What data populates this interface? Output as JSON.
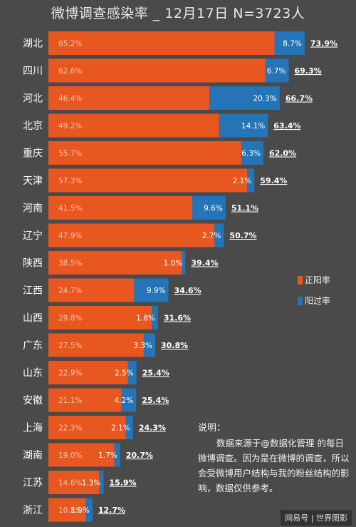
{
  "chart_data": {
    "type": "bar",
    "orientation": "horizontal",
    "stacked": true,
    "title": "微博调查感染率 _ 12月17日 N=3723人",
    "categories": [
      "湖北",
      "四川",
      "河北",
      "北京",
      "重庆",
      "天津",
      "河南",
      "辽宁",
      "陕西",
      "江西",
      "山西",
      "广东",
      "山东",
      "安徽",
      "上海",
      "湖南",
      "江苏",
      "浙江"
    ],
    "series": [
      {
        "name": "正阳率",
        "color": "#e8571f",
        "values": [
          65.2,
          62.6,
          46.4,
          49.2,
          55.7,
          57.3,
          41.5,
          47.9,
          38.5,
          24.7,
          29.8,
          27.5,
          22.9,
          21.1,
          22.3,
          19.0,
          14.6,
          10.8
        ],
        "labels": [
          "65.2%",
          "62.6%",
          "46.4%",
          "49.2%",
          "55.7%",
          "57.3%",
          "41.5%",
          "47.9%",
          "38.5%",
          "24.7%",
          "29.8%",
          "27.5%",
          "22.9%",
          "21.1%",
          "22.3%",
          "19.0%",
          "14.6%",
          "10.8%"
        ]
      },
      {
        "name": "阳过率",
        "color": "#2574b8",
        "values": [
          8.7,
          6.7,
          20.3,
          14.1,
          6.3,
          2.1,
          9.6,
          2.7,
          1.0,
          9.9,
          1.8,
          3.3,
          2.5,
          4.2,
          2.1,
          1.7,
          1.3,
          1.9
        ],
        "labels": [
          "8.7%",
          "6.7%",
          "20.3%",
          "14.1%",
          "6.3%",
          "2.1%",
          "9.6%",
          "2.7%",
          "1.0%",
          "9.9%",
          "1.8%",
          "3.3%",
          "2.5%",
          "4.2%",
          "2.1%",
          "1.7%",
          "1.3%",
          "1.9%"
        ]
      }
    ],
    "totals": [
      "73.9%",
      "69.3%",
      "66.7%",
      "63.4%",
      "62.0%",
      "59.4%",
      "51.1%",
      "50.7%",
      "39.4%",
      "34.6%",
      "31.6%",
      "30.8%",
      "25.4%",
      "25.4%",
      "24.3%",
      "20.7%",
      "15.9%",
      "12.7%"
    ],
    "legend": {
      "position": "right",
      "items": [
        "正阳率",
        "阳过率"
      ]
    },
    "colors": {
      "positive": "#e8571f",
      "recovered": "#2574b8",
      "background": "#4a4a4a"
    },
    "grid": false
  },
  "note": {
    "title": "说明：",
    "body": "数据来源于@数据化管理 的每日微博调查。因为是在微博的调查，所以会受微博用户结构与我的粉丝结构的影响，数据仅供参考。"
  },
  "watermark": "网易号 | 世界图影"
}
